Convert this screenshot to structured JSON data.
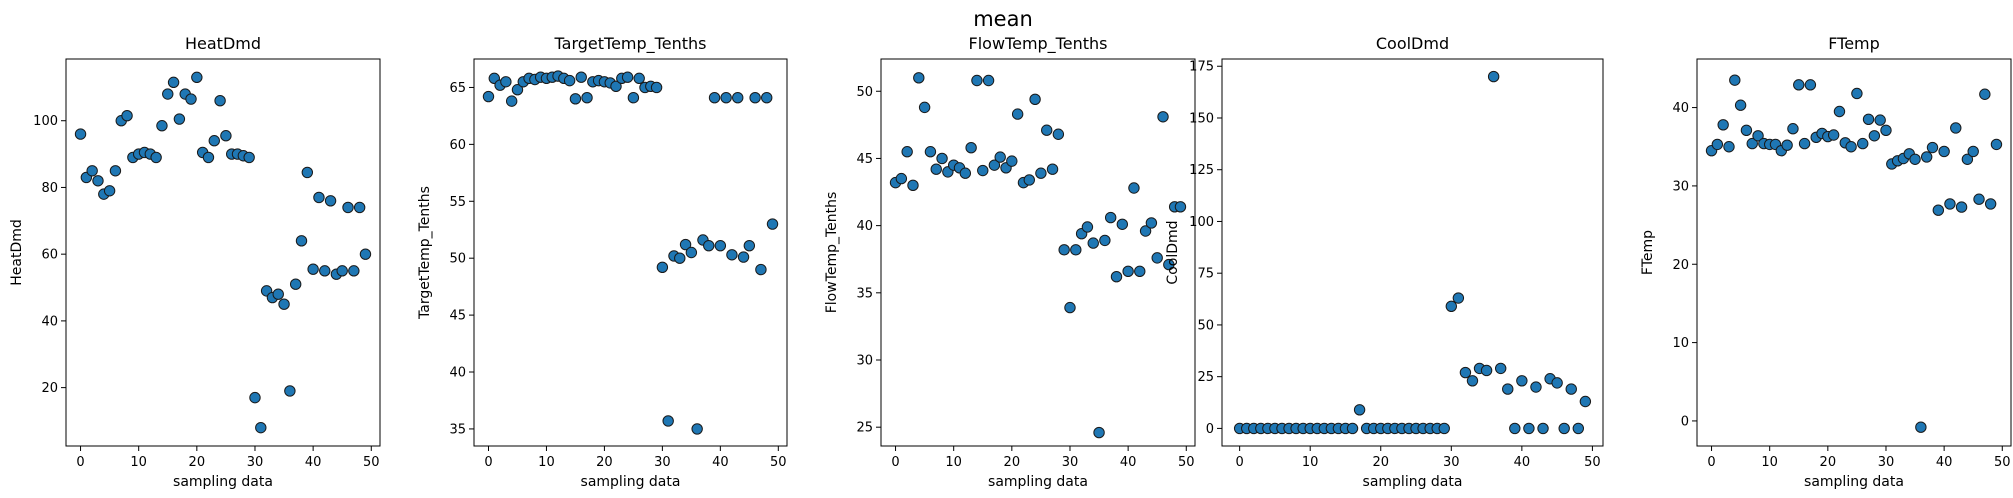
{
  "suptitle": "mean",
  "colors": {
    "marker": "#1f77b4",
    "edge": "#1a1a1a"
  },
  "chart_data": [
    {
      "type": "scatter",
      "title": "HeatDmd",
      "xlabel": "sampling data",
      "ylabel": "HeatDmd",
      "xlim": [
        -2.5,
        51.5
      ],
      "ylim": [
        2.5,
        118.5
      ],
      "xticks": [
        0,
        10,
        20,
        30,
        40,
        50
      ],
      "yticks": [
        20,
        40,
        60,
        80,
        100
      ],
      "x": [
        0,
        1,
        2,
        3,
        4,
        5,
        6,
        7,
        8,
        9,
        10,
        11,
        12,
        13,
        14,
        15,
        16,
        17,
        18,
        19,
        20,
        21,
        22,
        23,
        24,
        25,
        26,
        27,
        28,
        29,
        30,
        31,
        32,
        33,
        34,
        35,
        36,
        37,
        38,
        39,
        40,
        41,
        42,
        43,
        44,
        45,
        46,
        47,
        48,
        49
      ],
      "y": [
        96,
        83,
        85,
        82,
        78,
        79,
        85,
        100,
        101.5,
        89,
        90,
        90.5,
        90,
        89,
        98.5,
        108,
        111.5,
        100.5,
        108,
        106.5,
        113,
        90.5,
        89,
        94,
        106,
        95.5,
        90,
        90,
        89.5,
        89,
        17,
        8,
        49,
        47,
        48,
        45,
        19,
        51,
        64,
        84.5,
        55.5,
        77,
        55,
        76,
        54,
        55,
        74,
        55,
        74,
        60
      ]
    },
    {
      "type": "scatter",
      "title": "TargetTemp_Tenths",
      "xlabel": "sampling data",
      "ylabel": "TargetTemp_Tenths",
      "xlim": [
        -2.5,
        51.5
      ],
      "ylim": [
        33.5,
        67.5
      ],
      "xticks": [
        0,
        10,
        20,
        30,
        40,
        50
      ],
      "yticks": [
        35,
        40,
        45,
        50,
        55,
        60,
        65
      ],
      "x": [
        0,
        1,
        2,
        3,
        4,
        5,
        6,
        7,
        8,
        9,
        10,
        11,
        12,
        13,
        14,
        15,
        16,
        17,
        18,
        19,
        20,
        21,
        22,
        23,
        24,
        25,
        26,
        27,
        28,
        29,
        30,
        31,
        32,
        33,
        34,
        35,
        36,
        37,
        38,
        39,
        40,
        41,
        42,
        43,
        44,
        45,
        46,
        47,
        48,
        49
      ],
      "y": [
        64.2,
        65.8,
        65.2,
        65.5,
        63.8,
        64.8,
        65.5,
        65.8,
        65.7,
        65.9,
        65.8,
        65.9,
        66,
        65.8,
        65.6,
        64,
        65.9,
        64.1,
        65.5,
        65.6,
        65.5,
        65.4,
        65.1,
        65.8,
        65.9,
        64.1,
        65.8,
        65,
        65.1,
        65,
        49.2,
        35.7,
        50.2,
        50,
        51.2,
        50.5,
        35,
        51.6,
        51.1,
        64.1,
        51.1,
        64.1,
        50.3,
        64.1,
        50.1,
        51.1,
        64.1,
        49,
        64.1,
        53
      ]
    },
    {
      "type": "scatter",
      "title": "FlowTemp_Tenths",
      "xlabel": "sampling data",
      "ylabel": "FlowTemp_Tenths",
      "xlim": [
        -2.5,
        51.5
      ],
      "ylim": [
        23.6,
        52.4
      ],
      "xticks": [
        0,
        10,
        20,
        30,
        40,
        50
      ],
      "yticks": [
        25,
        30,
        35,
        40,
        45,
        50
      ],
      "x": [
        0,
        1,
        2,
        3,
        4,
        5,
        6,
        7,
        8,
        9,
        10,
        11,
        12,
        13,
        14,
        15,
        16,
        17,
        18,
        19,
        20,
        21,
        22,
        23,
        24,
        25,
        26,
        27,
        28,
        29,
        30,
        31,
        32,
        33,
        34,
        35,
        36,
        37,
        38,
        39,
        40,
        41,
        42,
        43,
        44,
        45,
        46,
        47,
        48,
        49
      ],
      "y": [
        43.2,
        43.5,
        45.5,
        43,
        51,
        48.8,
        45.5,
        44.2,
        45,
        44,
        44.5,
        44.3,
        43.9,
        45.8,
        50.8,
        44.1,
        50.8,
        44.5,
        45.1,
        44.3,
        44.8,
        48.3,
        43.2,
        43.4,
        49.4,
        43.9,
        47.1,
        44.2,
        46.8,
        38.2,
        33.9,
        38.2,
        39.4,
        39.9,
        38.7,
        24.6,
        38.9,
        40.6,
        36.2,
        40.1,
        36.6,
        42.8,
        36.6,
        39.6,
        40.2,
        37.6,
        48.1,
        37.1,
        41.4,
        41.4
      ]
    },
    {
      "type": "scatter",
      "title": "CoolDmd",
      "xlabel": "sampling data",
      "ylabel": "CoolDmd",
      "xlim": [
        -2.5,
        51.5
      ],
      "ylim": [
        -8.5,
        178.5
      ],
      "xticks": [
        0,
        10,
        20,
        30,
        40,
        50
      ],
      "yticks": [
        0,
        25,
        50,
        75,
        100,
        125,
        150,
        175
      ],
      "x": [
        0,
        1,
        2,
        3,
        4,
        5,
        6,
        7,
        8,
        9,
        10,
        11,
        12,
        13,
        14,
        15,
        16,
        17,
        18,
        19,
        20,
        21,
        22,
        23,
        24,
        25,
        26,
        27,
        28,
        29,
        30,
        31,
        32,
        33,
        34,
        35,
        36,
        37,
        38,
        39,
        40,
        41,
        42,
        43,
        44,
        45,
        46,
        47,
        48,
        49
      ],
      "y": [
        0,
        0,
        0,
        0,
        0,
        0,
        0,
        0,
        0,
        0,
        0,
        0,
        0,
        0,
        0,
        0,
        0,
        9,
        0,
        0,
        0,
        0,
        0,
        0,
        0,
        0,
        0,
        0,
        0,
        0,
        59,
        63,
        27,
        23,
        29,
        28,
        170,
        29,
        19,
        0,
        23,
        0,
        20,
        0,
        24,
        22,
        0,
        19,
        0,
        13
      ]
    },
    {
      "type": "scatter",
      "title": "FTemp",
      "xlabel": "sampling data",
      "ylabel": "FTemp",
      "xlim": [
        -2.5,
        51.5
      ],
      "ylim": [
        -3.2,
        46.2
      ],
      "xticks": [
        0,
        10,
        20,
        30,
        40,
        50
      ],
      "yticks": [
        0,
        10,
        20,
        30,
        40
      ],
      "x": [
        0,
        1,
        2,
        3,
        4,
        5,
        6,
        7,
        8,
        9,
        10,
        11,
        12,
        13,
        14,
        15,
        16,
        17,
        18,
        19,
        20,
        21,
        22,
        23,
        24,
        25,
        26,
        27,
        28,
        29,
        30,
        31,
        32,
        33,
        34,
        35,
        36,
        37,
        38,
        39,
        40,
        41,
        42,
        43,
        44,
        45,
        46,
        47,
        48,
        49
      ],
      "y": [
        34.5,
        35.3,
        37.8,
        35,
        43.5,
        40.3,
        37.1,
        35.4,
        36.4,
        35.4,
        35.3,
        35.3,
        34.5,
        35.2,
        37.3,
        42.9,
        35.4,
        42.9,
        36.2,
        36.7,
        36.3,
        36.5,
        39.5,
        35.5,
        35,
        41.8,
        35.4,
        38.5,
        36.4,
        38.4,
        37.1,
        32.8,
        33.2,
        33.5,
        34.1,
        33.4,
        -0.8,
        33.7,
        34.9,
        26.9,
        34.4,
        27.7,
        37.4,
        27.3,
        33.4,
        34.4,
        28.3,
        41.7,
        27.7,
        35.3
      ]
    }
  ]
}
